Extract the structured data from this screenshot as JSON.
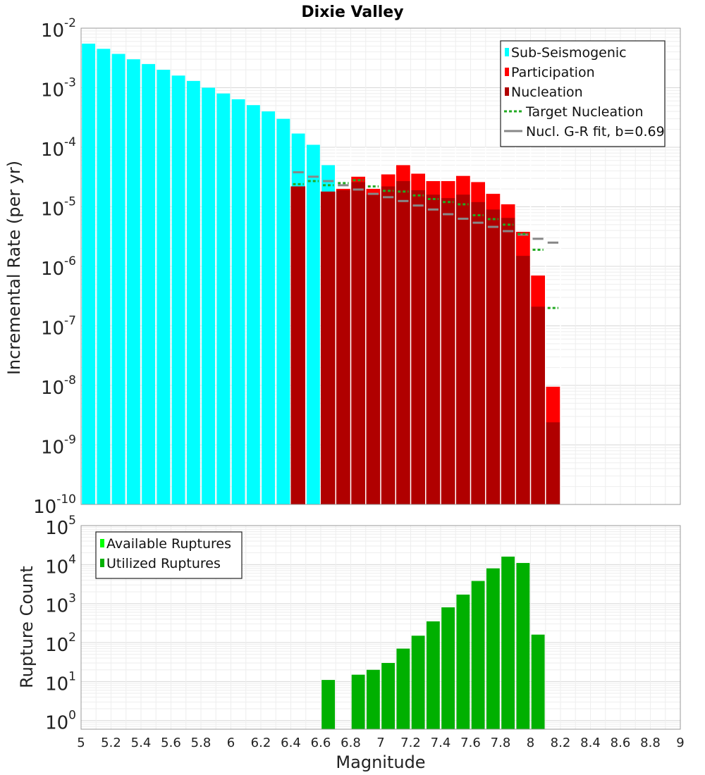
{
  "chart_data": [
    {
      "type": "bar",
      "title": "Dixie Valley",
      "xlabel": "",
      "ylabel": "Incremental Rate (per yr)",
      "yscale": "log",
      "ylim": [
        1e-10,
        0.01
      ],
      "xlim": [
        5,
        9
      ],
      "bin_width": 0.1,
      "grid": true,
      "legend_position": "top-right",
      "colors": {
        "sub_seismogenic": "#00ffff",
        "participation": "#ff0000",
        "nucleation": "#b00000",
        "target_nucleation": "#22aa22",
        "gr_fit": "#888888"
      },
      "legend": [
        {
          "label": "Sub-Seismogenic",
          "kind": "box",
          "color": "#00ffff"
        },
        {
          "label": "Participation",
          "kind": "box",
          "color": "#ff0000"
        },
        {
          "label": "Nucleation",
          "kind": "box",
          "color": "#b00000"
        },
        {
          "label": "Target Nucleation",
          "kind": "dotted",
          "color": "#22aa22"
        },
        {
          "label": "Nucl. G-R fit, b=0.69",
          "kind": "line",
          "color": "#888888"
        }
      ],
      "series": [
        {
          "name": "Sub-Seismogenic",
          "x": [
            5.05,
            5.15,
            5.25,
            5.35,
            5.45,
            5.55,
            5.65,
            5.75,
            5.85,
            5.95,
            6.05,
            6.15,
            6.25,
            6.35,
            6.45,
            6.55,
            6.65
          ],
          "values": [
            0.0055,
            0.0045,
            0.0037,
            0.003,
            0.0025,
            0.002,
            0.0016,
            0.0013,
            0.001,
            0.0008,
            0.00064,
            0.00051,
            0.0004,
            0.0003,
            0.00017,
            0.00011,
            5e-05
          ]
        },
        {
          "name": "Participation",
          "x": [
            6.45,
            6.65,
            6.75,
            6.85,
            6.95,
            7.05,
            7.15,
            7.25,
            7.35,
            7.45,
            7.55,
            7.65,
            7.75,
            7.85,
            7.95,
            8.05,
            8.15
          ],
          "values": [
            2.2e-05,
            1.8e-05,
            2e-05,
            3.2e-05,
            2e-05,
            3.5e-05,
            5e-05,
            3.6e-05,
            2.7e-05,
            2.7e-05,
            3.3e-05,
            2.6e-05,
            1.65e-05,
            1.1e-05,
            3.8e-06,
            7e-07,
            9.5e-09
          ]
        },
        {
          "name": "Nucleation",
          "x": [
            6.45,
            6.65,
            6.75,
            6.85,
            6.95,
            7.05,
            7.15,
            7.25,
            7.35,
            7.45,
            7.55,
            7.65,
            7.75,
            7.85,
            7.95,
            8.05,
            8.15
          ],
          "values": [
            2.2e-05,
            1.8e-05,
            1.9e-05,
            2.6e-05,
            1.6e-05,
            2.2e-05,
            2.7e-05,
            1.9e-05,
            1.6e-05,
            1.4e-05,
            1.6e-05,
            1.2e-05,
            9e-06,
            6.5e-06,
            1.5e-06,
            2.1e-07,
            2.4e-09
          ]
        },
        {
          "name": "Target Nucleation",
          "x": [
            6.45,
            6.55,
            6.65,
            6.75,
            6.85,
            6.95,
            7.05,
            7.15,
            7.25,
            7.35,
            7.45,
            7.55,
            7.65,
            7.75,
            7.85,
            7.95,
            8.05,
            8.15
          ],
          "values": [
            2.4e-05,
            2.7e-05,
            2.3e-05,
            2.5e-05,
            2.8e-05,
            2.2e-05,
            1.85e-05,
            1.8e-05,
            1.55e-05,
            1.35e-05,
            1.2e-05,
            1.1e-05,
            7.2e-06,
            6.2e-06,
            5e-06,
            3.5e-06,
            1.9e-06,
            2e-07
          ]
        },
        {
          "name": "Nucl. G-R fit, b=0.69",
          "x": [
            6.45,
            6.55,
            6.65,
            6.75,
            6.85,
            6.95,
            7.05,
            7.15,
            7.25,
            7.35,
            7.45,
            7.55,
            7.65,
            7.75,
            7.85,
            7.95,
            8.05,
            8.15
          ],
          "values": [
            3.8e-05,
            3.2e-05,
            2.7e-05,
            2.3e-05,
            1.95e-05,
            1.65e-05,
            1.45e-05,
            1.25e-05,
            1.05e-05,
            9e-06,
            7.5e-06,
            6.3e-06,
            5.4e-06,
            4.6e-06,
            3.9e-06,
            3.4e-06,
            2.9e-06,
            2.5e-06
          ]
        }
      ]
    },
    {
      "type": "bar",
      "title": "",
      "xlabel": "Magnitude",
      "ylabel": "Rupture Count",
      "yscale": "log",
      "ylim": [
        0.6,
        100000.0
      ],
      "xlim": [
        5,
        9
      ],
      "bin_width": 0.1,
      "grid": true,
      "legend_position": "top-left",
      "x_ticks": [
        "5",
        "5.2",
        "5.4",
        "5.6",
        "5.8",
        "6",
        "6.2",
        "6.4",
        "6.6",
        "6.8",
        "7",
        "7.2",
        "7.4",
        "7.6",
        "7.8",
        "8",
        "8.2",
        "8.4",
        "8.6",
        "8.8",
        "9"
      ],
      "colors": {
        "available": "#00ff00",
        "utilized": "#00b000"
      },
      "legend": [
        {
          "label": "Available Ruptures",
          "kind": "box",
          "color": "#00ff00"
        },
        {
          "label": "Utilized Ruptures",
          "kind": "box",
          "color": "#00b000"
        }
      ],
      "series": [
        {
          "name": "Available Ruptures",
          "x": [
            6.65,
            6.85,
            6.95,
            7.05,
            7.15,
            7.25,
            7.35,
            7.45,
            7.55,
            7.65,
            7.75,
            7.85,
            7.95,
            8.05
          ],
          "values": [
            11,
            15,
            20,
            30,
            70,
            150,
            350,
            800,
            1700,
            3800,
            8000,
            16000,
            11000,
            160
          ]
        },
        {
          "name": "Utilized Ruptures",
          "x": [
            6.65,
            6.85,
            6.95,
            7.05,
            7.15,
            7.25,
            7.35,
            7.45,
            7.55,
            7.65,
            7.75,
            7.85,
            7.95,
            8.05
          ],
          "values": [
            11,
            15,
            20,
            30,
            70,
            150,
            350,
            800,
            1700,
            3800,
            8000,
            16000,
            11000,
            160
          ]
        }
      ]
    }
  ],
  "y_tick_labels_top": [
    {
      "base": "10",
      "exp": "-10"
    },
    {
      "base": "10",
      "exp": "-9"
    },
    {
      "base": "10",
      "exp": "-8"
    },
    {
      "base": "10",
      "exp": "-7"
    },
    {
      "base": "10",
      "exp": "-6"
    },
    {
      "base": "10",
      "exp": "-5"
    },
    {
      "base": "10",
      "exp": "-4"
    },
    {
      "base": "10",
      "exp": "-3"
    },
    {
      "base": "10",
      "exp": "-2"
    }
  ],
  "y_tick_labels_bottom": [
    {
      "base": "10",
      "exp": "0"
    },
    {
      "base": "10",
      "exp": "1"
    },
    {
      "base": "10",
      "exp": "2"
    },
    {
      "base": "10",
      "exp": "3"
    },
    {
      "base": "10",
      "exp": "4"
    },
    {
      "base": "10",
      "exp": "5"
    }
  ]
}
